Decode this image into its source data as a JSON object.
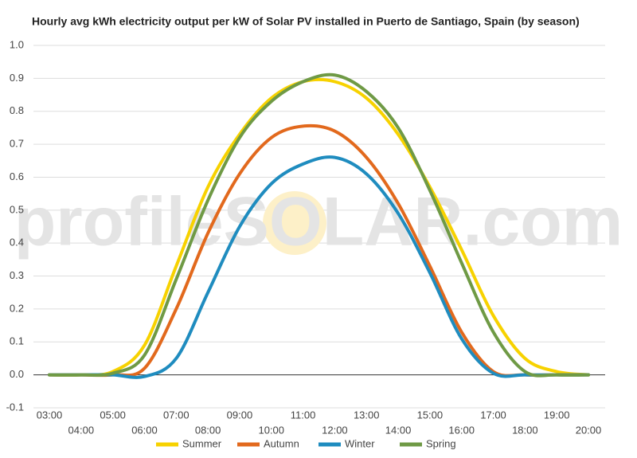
{
  "chart_data": {
    "type": "line",
    "title": "Hourly avg kWh electricity output per kW of Solar PV installed in Puerto de Santiago, Spain (by season)",
    "watermark": "profileSOLAR.com",
    "categories": [
      "03:00",
      "04:00",
      "05:00",
      "06:00",
      "07:00",
      "08:00",
      "09:00",
      "10:00",
      "11:00",
      "12:00",
      "13:00",
      "14:00",
      "15:00",
      "16:00",
      "17:00",
      "18:00",
      "19:00",
      "20:00"
    ],
    "series": [
      {
        "name": "Summer",
        "color": "#f7d200",
        "values": [
          0,
          0,
          0.01,
          0.09,
          0.33,
          0.57,
          0.73,
          0.84,
          0.89,
          0.89,
          0.84,
          0.73,
          0.57,
          0.38,
          0.18,
          0.05,
          0.01,
          0
        ]
      },
      {
        "name": "Autumn",
        "color": "#e2691d",
        "values": [
          0,
          0,
          0,
          0.02,
          0.2,
          0.43,
          0.61,
          0.72,
          0.755,
          0.74,
          0.66,
          0.52,
          0.33,
          0.13,
          0.01,
          0,
          0,
          0
        ]
      },
      {
        "name": "Winter",
        "color": "#1f8cbf",
        "values": [
          0,
          0,
          0,
          -0.005,
          0.05,
          0.25,
          0.45,
          0.58,
          0.64,
          0.66,
          0.61,
          0.49,
          0.31,
          0.11,
          0.005,
          0,
          0,
          0
        ]
      },
      {
        "name": "Spring",
        "color": "#6f9a45",
        "values": [
          0,
          0,
          0.005,
          0.06,
          0.29,
          0.53,
          0.72,
          0.83,
          0.89,
          0.91,
          0.86,
          0.75,
          0.56,
          0.34,
          0.13,
          0.01,
          0,
          0
        ]
      }
    ],
    "ylim": [
      -0.1,
      1.0
    ],
    "yticks": [
      {
        "value": -0.1,
        "label": "-0.1"
      },
      {
        "value": 0,
        "label": "0.0"
      },
      0.1,
      0.2,
      0.3,
      0.4,
      0.5,
      0.6,
      0.7,
      0.8,
      0.9,
      {
        "value": 1,
        "label": "1.0"
      }
    ],
    "grid": true,
    "legend": "bottom"
  }
}
